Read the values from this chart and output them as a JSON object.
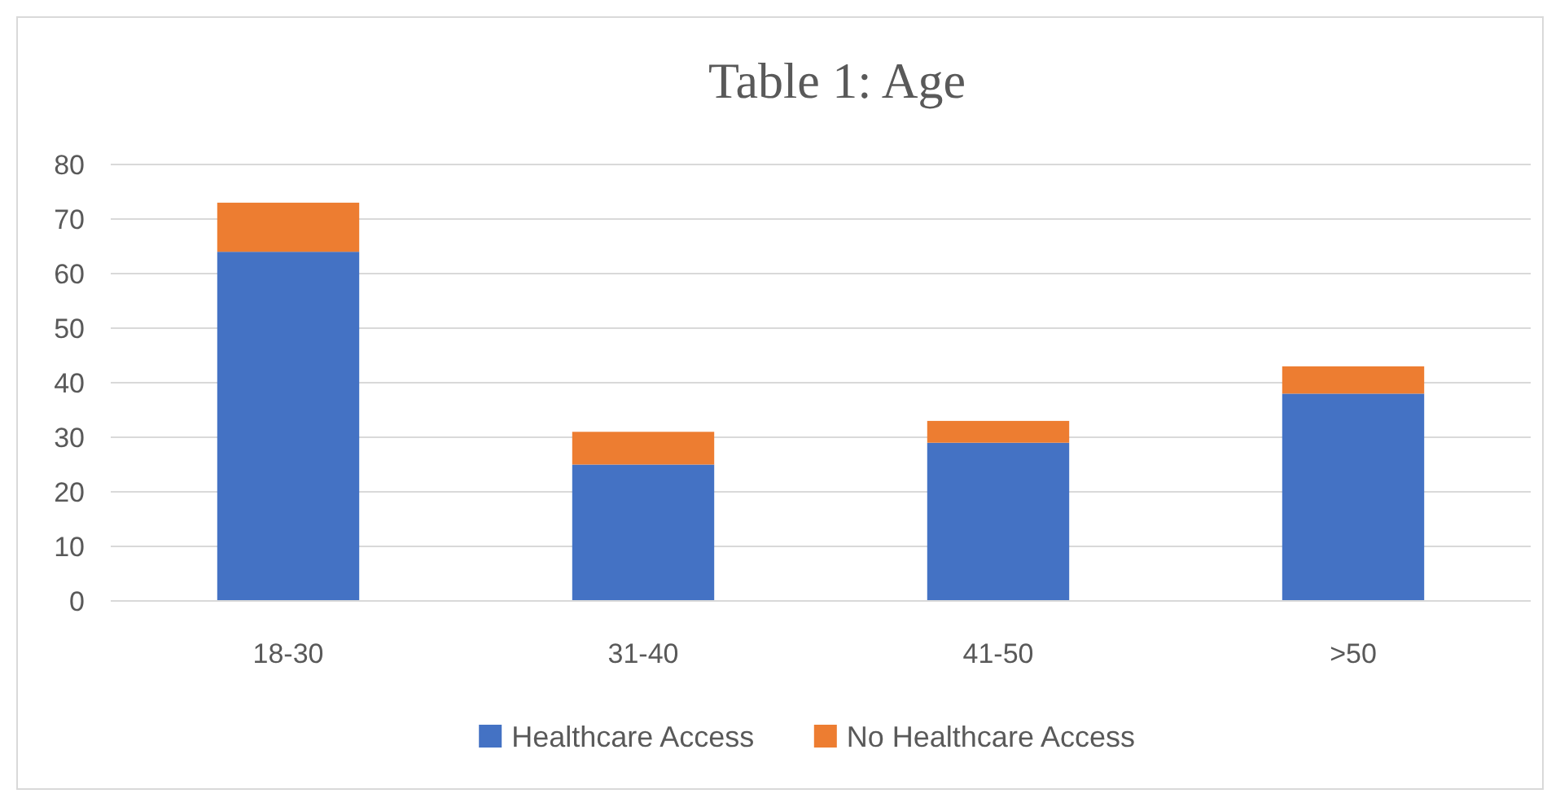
{
  "chart_data": {
    "type": "bar",
    "title": "Table 1: Age",
    "categories": [
      "18-30",
      "31-40",
      "41-50",
      ">50"
    ],
    "stacked": true,
    "series": [
      {
        "name": "Healthcare Access",
        "color": "#4472c4",
        "values": [
          64,
          25,
          29,
          38
        ]
      },
      {
        "name": "No Healthcare Access",
        "color": "#ed7d31",
        "values": [
          9,
          6,
          4,
          5
        ]
      }
    ],
    "ylim": [
      0,
      80
    ],
    "yticks": [
      0,
      10,
      20,
      30,
      40,
      50,
      60,
      70,
      80
    ],
    "grid": "y",
    "legend": "bottom"
  }
}
